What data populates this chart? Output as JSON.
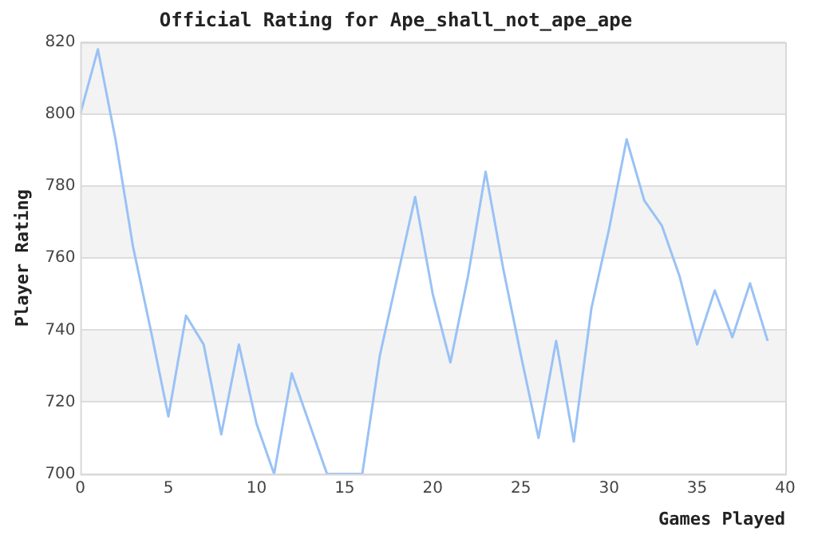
{
  "chart_data": {
    "type": "line",
    "title": "Official Rating for Ape_shall_not_ape_ape",
    "xlabel": "Games Played",
    "ylabel": "Player Rating",
    "x": [
      0,
      1,
      2,
      3,
      4,
      5,
      6,
      7,
      8,
      9,
      10,
      11,
      12,
      13,
      14,
      15,
      16,
      17,
      18,
      19,
      20,
      21,
      22,
      23,
      24,
      25,
      26,
      27,
      28,
      29,
      30,
      31,
      32,
      33,
      34,
      35,
      36,
      37,
      38,
      39
    ],
    "series": [
      {
        "color": "#99c2f5",
        "values": [
          800,
          818,
          793,
          763,
          740,
          716,
          744,
          736,
          711,
          736,
          714,
          700,
          728,
          714,
          700,
          700,
          700,
          733,
          755,
          777,
          750,
          731,
          755,
          784,
          757,
          733,
          710,
          737,
          709,
          746,
          768,
          793,
          776,
          769,
          755,
          736,
          751,
          738,
          753,
          737
        ]
      }
    ],
    "xlim": [
      0,
      40
    ],
    "xticks": [
      0,
      5,
      10,
      15,
      20,
      25,
      30,
      35,
      40
    ],
    "ylim": [
      700,
      820
    ],
    "yticks": [
      700,
      720,
      740,
      760,
      780,
      800,
      820
    ],
    "grid": "y",
    "legend": false,
    "marker": "none",
    "line_style": "solid"
  }
}
